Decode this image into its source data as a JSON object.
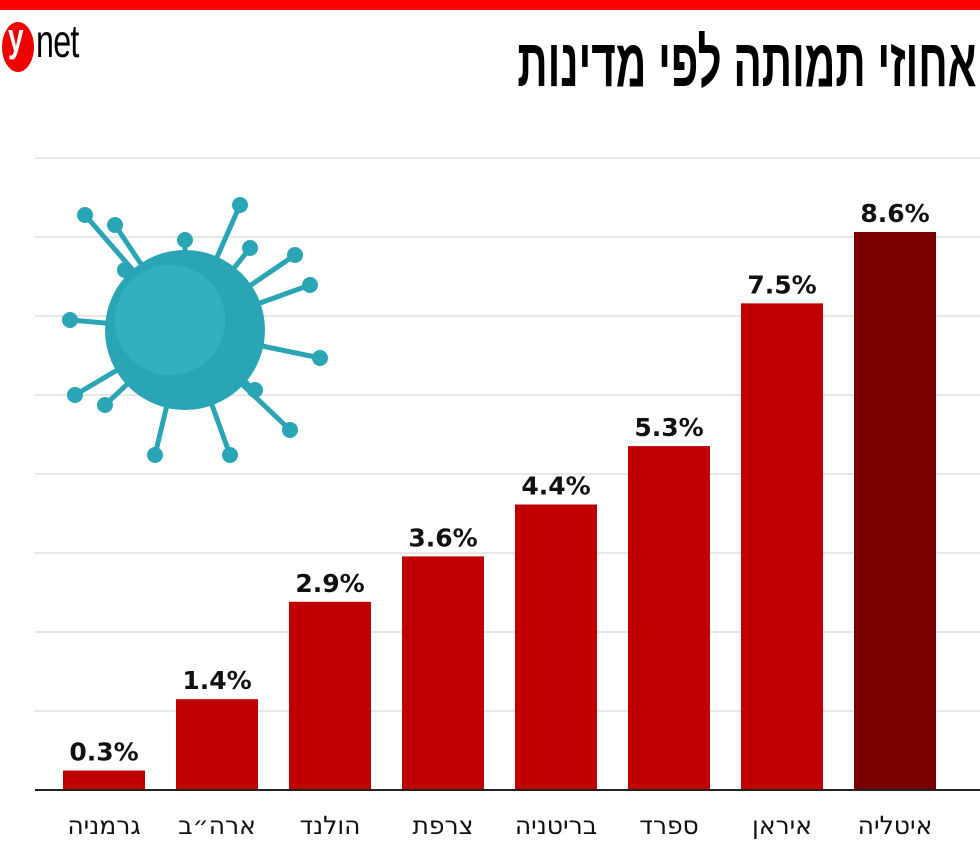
{
  "header": {
    "logo": "ynet",
    "title": "אחוזי תמותה לפי מדינות"
  },
  "chart_data": {
    "type": "bar",
    "title": "אחוזי תמותה לפי מדינות",
    "xlabel": "",
    "ylabel": "",
    "categories": [
      "גרמניה",
      "ארה״ב",
      "הולנד",
      "צרפת",
      "בריטניה",
      "ספרד",
      "איראן",
      "איטליה"
    ],
    "values": [
      0.3,
      1.4,
      2.9,
      3.6,
      4.4,
      5.3,
      7.5,
      8.6
    ],
    "labels": [
      "0.3%",
      "1.4%",
      "2.9%",
      "3.6%",
      "4.4%",
      "5.3%",
      "7.5%",
      "8.6%"
    ],
    "ylim": [
      0,
      9.74
    ],
    "grid": true,
    "colors": {
      "bar": "#c00000",
      "highlight": "#7a0000"
    },
    "highlight_index": 7
  },
  "colors": {
    "brand": "#ff0000",
    "virus": "#2aa5b5"
  }
}
